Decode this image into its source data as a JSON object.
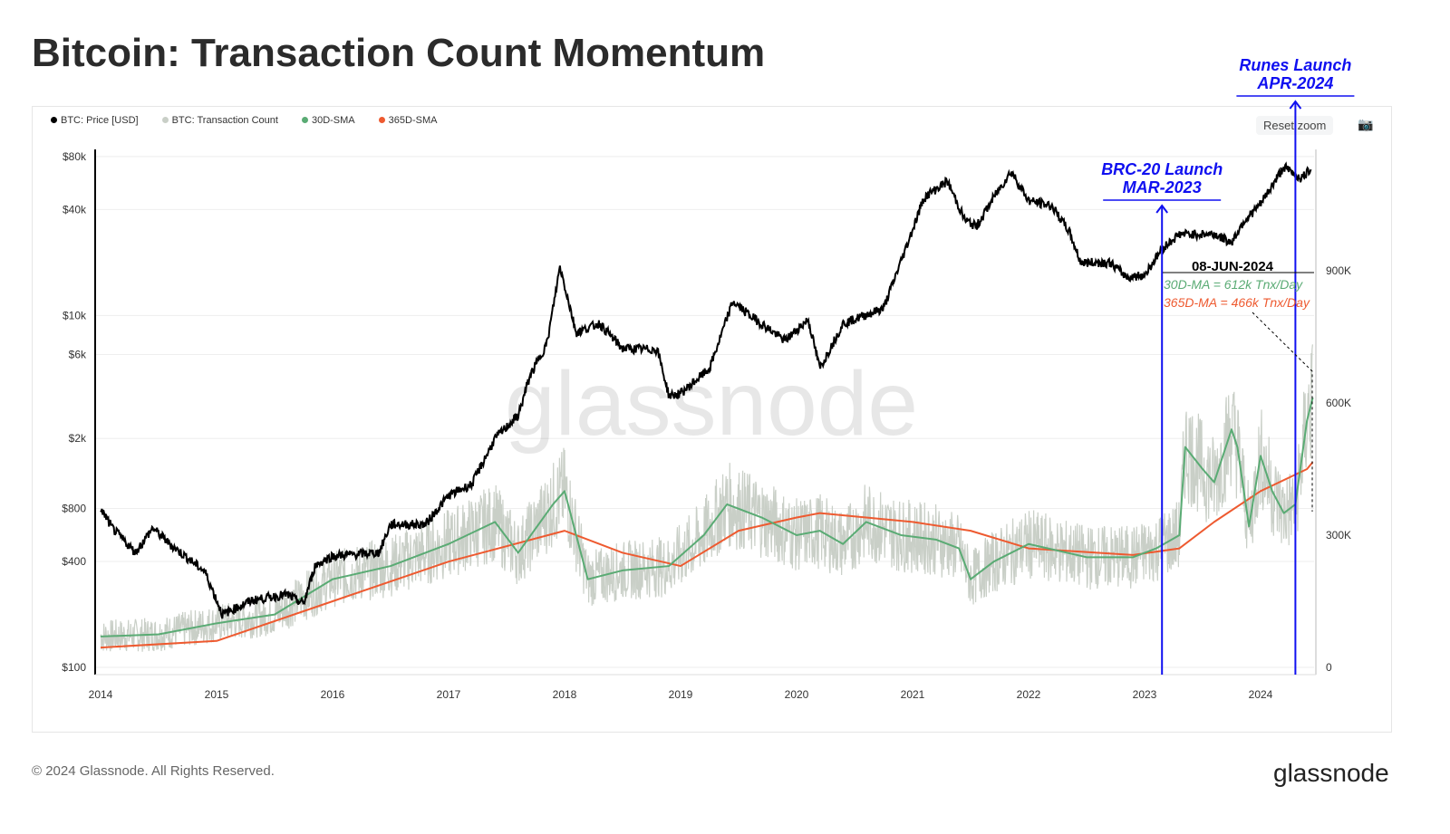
{
  "header": {
    "title": "Bitcoin: Transaction Count Momentum"
  },
  "toolbar": {
    "reset_zoom": "Reset zoom",
    "camera_icon": "camera-icon"
  },
  "footer": {
    "copyright": "© 2024 Glassnode. All Rights Reserved.",
    "brand": "glassnode"
  },
  "watermark": "glassnode",
  "colors": {
    "price": "#000000",
    "tx": "#c9cfc7",
    "sma30": "#5aab74",
    "sma365": "#ee5a30",
    "annotation": "#1010f0"
  },
  "chart_data": {
    "type": "line",
    "title": "Bitcoin: Transaction Count Momentum",
    "legend": [
      "BTC: Price [USD]",
      "BTC: Transaction Count",
      "30D-SMA",
      "365D-SMA"
    ],
    "legend_placement": "top-left",
    "x_ticks": [
      "2014",
      "2015",
      "2016",
      "2017",
      "2018",
      "2019",
      "2020",
      "2021",
      "2022",
      "2023",
      "2024"
    ],
    "y_left_ticks": [
      "$80k",
      "$40k",
      "$10k",
      "$6k",
      "$2k",
      "$800",
      "$400",
      "$100"
    ],
    "y_left_values": [
      80000,
      40000,
      10000,
      6000,
      2000,
      800,
      400,
      100
    ],
    "y_left_scale": "log",
    "y_left_range": [
      100,
      80000
    ],
    "y_right_ticks": [
      "900K",
      "600K",
      "300K",
      "0"
    ],
    "y_right_values": [
      900,
      600,
      300,
      0
    ],
    "y_right_range": [
      0,
      900
    ],
    "price": [
      [
        2014.0,
        800
      ],
      [
        2014.1,
        620
      ],
      [
        2014.3,
        450
      ],
      [
        2014.45,
        620
      ],
      [
        2014.6,
        500
      ],
      [
        2014.9,
        350
      ],
      [
        2015.05,
        200
      ],
      [
        2015.3,
        240
      ],
      [
        2015.6,
        260
      ],
      [
        2015.75,
        230
      ],
      [
        2015.85,
        380
      ],
      [
        2016.0,
        430
      ],
      [
        2016.4,
        450
      ],
      [
        2016.5,
        650
      ],
      [
        2016.8,
        650
      ],
      [
        2017.0,
        950
      ],
      [
        2017.2,
        1100
      ],
      [
        2017.4,
        2000
      ],
      [
        2017.6,
        2700
      ],
      [
        2017.7,
        4500
      ],
      [
        2017.85,
        7000
      ],
      [
        2017.96,
        19000
      ],
      [
        2018.1,
        8000
      ],
      [
        2018.3,
        9000
      ],
      [
        2018.5,
        6500
      ],
      [
        2018.8,
        6400
      ],
      [
        2018.9,
        3500
      ],
      [
        2019.0,
        3600
      ],
      [
        2019.25,
        5000
      ],
      [
        2019.45,
        12000
      ],
      [
        2019.6,
        10000
      ],
      [
        2019.9,
        7200
      ],
      [
        2020.1,
        9500
      ],
      [
        2020.2,
        5000
      ],
      [
        2020.4,
        9000
      ],
      [
        2020.75,
        11000
      ],
      [
        2020.95,
        25000
      ],
      [
        2021.1,
        47000
      ],
      [
        2021.3,
        58000
      ],
      [
        2021.45,
        35000
      ],
      [
        2021.55,
        32000
      ],
      [
        2021.7,
        47000
      ],
      [
        2021.85,
        66000
      ],
      [
        2022.0,
        45000
      ],
      [
        2022.2,
        42000
      ],
      [
        2022.35,
        30000
      ],
      [
        2022.45,
        20000
      ],
      [
        2022.7,
        20000
      ],
      [
        2022.85,
        16500
      ],
      [
        2023.0,
        17000
      ],
      [
        2023.15,
        24000
      ],
      [
        2023.3,
        29000
      ],
      [
        2023.6,
        29000
      ],
      [
        2023.75,
        26000
      ],
      [
        2023.85,
        34000
      ],
      [
        2024.0,
        43000
      ],
      [
        2024.15,
        62000
      ],
      [
        2024.2,
        70000
      ],
      [
        2024.35,
        60000
      ],
      [
        2024.44,
        69000
      ]
    ],
    "sma30_k": [
      [
        2014,
        70
      ],
      [
        2014.5,
        75
      ],
      [
        2015,
        100
      ],
      [
        2015.5,
        120
      ],
      [
        2016,
        200
      ],
      [
        2016.5,
        230
      ],
      [
        2017,
        280
      ],
      [
        2017.4,
        330
      ],
      [
        2017.6,
        260
      ],
      [
        2017.9,
        370
      ],
      [
        2018,
        400
      ],
      [
        2018.2,
        200
      ],
      [
        2018.5,
        220
      ],
      [
        2018.9,
        230
      ],
      [
        2019.2,
        300
      ],
      [
        2019.4,
        370
      ],
      [
        2019.7,
        340
      ],
      [
        2020,
        300
      ],
      [
        2020.2,
        310
      ],
      [
        2020.4,
        280
      ],
      [
        2020.6,
        330
      ],
      [
        2020.9,
        300
      ],
      [
        2021.2,
        290
      ],
      [
        2021.4,
        270
      ],
      [
        2021.5,
        200
      ],
      [
        2021.7,
        240
      ],
      [
        2022,
        280
      ],
      [
        2022.5,
        250
      ],
      [
        2022.9,
        250
      ],
      [
        2023.1,
        270
      ],
      [
        2023.3,
        300
      ],
      [
        2023.35,
        500
      ],
      [
        2023.5,
        450
      ],
      [
        2023.6,
        420
      ],
      [
        2023.75,
        540
      ],
      [
        2023.8,
        500
      ],
      [
        2023.9,
        320
      ],
      [
        2024.0,
        480
      ],
      [
        2024.1,
        400
      ],
      [
        2024.2,
        350
      ],
      [
        2024.3,
        370
      ],
      [
        2024.4,
        560
      ],
      [
        2024.45,
        612
      ]
    ],
    "sma365_k": [
      [
        2014,
        45
      ],
      [
        2015,
        60
      ],
      [
        2016,
        150
      ],
      [
        2017,
        240
      ],
      [
        2018,
        310
      ],
      [
        2018.5,
        260
      ],
      [
        2019,
        230
      ],
      [
        2019.5,
        310
      ],
      [
        2020,
        340
      ],
      [
        2020.2,
        350
      ],
      [
        2021,
        330
      ],
      [
        2021.5,
        310
      ],
      [
        2022,
        270
      ],
      [
        2022.9,
        255
      ],
      [
        2023.3,
        270
      ],
      [
        2023.6,
        330
      ],
      [
        2024,
        400
      ],
      [
        2024.4,
        450
      ],
      [
        2024.45,
        466
      ]
    ],
    "tx_noise_k": 60,
    "annotations": {
      "brc20": {
        "line1": "BRC-20 Launch",
        "line2": "MAR-2023",
        "x": 2023.15
      },
      "runes": {
        "line1": "Runes Launch",
        "line2": "APR-2024",
        "x": 2024.3
      },
      "date": "08-JUN-2024",
      "sma30_text": "30D-MA = 612k Tnx/Day",
      "sma365_text": "365D-MA = 466k Tnx/Day"
    }
  }
}
